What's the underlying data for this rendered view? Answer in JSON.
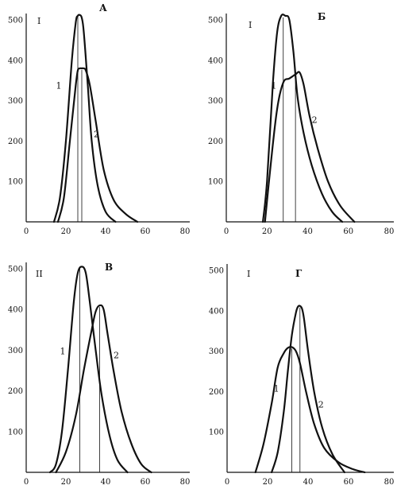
{
  "chart_data": [
    {
      "type": "line",
      "panel_letter": "А",
      "group_label": "I",
      "xlim": [
        0,
        80
      ],
      "ylim": [
        0,
        520
      ],
      "x_ticks": [
        "0",
        "20",
        "40",
        "60",
        "80"
      ],
      "y_ticks": [
        "100",
        "200",
        "300",
        "400",
        "500"
      ],
      "y_tick_values": [
        100,
        200,
        300,
        400,
        500
      ],
      "x_tick_values": [
        0,
        20,
        40,
        60,
        80
      ],
      "series": [
        {
          "name": "1",
          "x": [
            14,
            17,
            20,
            23,
            25,
            26,
            27,
            28,
            29,
            31,
            33,
            36,
            40,
            45
          ],
          "y": [
            0,
            60,
            200,
            400,
            495,
            510,
            512,
            505,
            470,
            340,
            200,
            90,
            25,
            0
          ]
        },
        {
          "name": "2",
          "x": [
            16,
            19,
            22,
            25,
            26,
            27,
            28,
            29,
            30,
            32,
            35,
            39,
            44,
            50,
            56
          ],
          "y": [
            0,
            60,
            200,
            340,
            375,
            380,
            380,
            380,
            375,
            340,
            250,
            130,
            55,
            20,
            0
          ]
        }
      ],
      "peak_lines": [
        26,
        28
      ]
    },
    {
      "type": "line",
      "panel_letter": "Б",
      "group_label": "I",
      "xlim": [
        0,
        80
      ],
      "ylim": [
        0,
        520
      ],
      "x_ticks": [
        "0",
        "20",
        "40",
        "60",
        "80"
      ],
      "y_ticks": [
        "100",
        "200",
        "300",
        "400",
        "500"
      ],
      "y_tick_values": [
        100,
        200,
        300,
        400,
        500
      ],
      "x_tick_values": [
        0,
        20,
        40,
        60,
        80
      ],
      "series": [
        {
          "name": "1",
          "x": [
            18,
            20,
            23,
            25,
            27,
            29,
            31,
            33,
            35,
            38,
            42,
            47,
            52,
            57
          ],
          "y": [
            0,
            100,
            350,
            470,
            510,
            510,
            500,
            420,
            310,
            220,
            140,
            70,
            25,
            0
          ]
        },
        {
          "name": "2",
          "x": [
            19,
            22,
            25,
            28,
            31,
            34,
            36,
            38,
            41,
            45,
            50,
            56,
            63
          ],
          "y": [
            0,
            150,
            280,
            345,
            355,
            365,
            370,
            340,
            260,
            180,
            100,
            40,
            0
          ]
        }
      ],
      "peak_lines": [
        28,
        34
      ]
    },
    {
      "type": "line",
      "panel_letter": "В",
      "group_label": "II",
      "xlim": [
        0,
        80
      ],
      "ylim": [
        0,
        520
      ],
      "x_ticks": [
        "0",
        "20",
        "40",
        "60",
        "80"
      ],
      "y_ticks": [
        "100",
        "200",
        "300",
        "400",
        "500"
      ],
      "y_tick_values": [
        100,
        200,
        300,
        400,
        500
      ],
      "x_tick_values": [
        0,
        20,
        40,
        60,
        80
      ],
      "series": [
        {
          "name": "1",
          "x": [
            12,
            15,
            18,
            21,
            24,
            26,
            28,
            30,
            32,
            35,
            38,
            42,
            46,
            51
          ],
          "y": [
            0,
            20,
            100,
            250,
            420,
            490,
            505,
            490,
            420,
            300,
            190,
            90,
            30,
            0
          ]
        },
        {
          "name": "2",
          "x": [
            15,
            20,
            25,
            29,
            33,
            35,
            37,
            39,
            41,
            44,
            48,
            53,
            58,
            63
          ],
          "y": [
            0,
            50,
            140,
            250,
            350,
            395,
            410,
            400,
            340,
            250,
            150,
            70,
            20,
            0
          ]
        }
      ],
      "peak_lines": [
        27,
        37
      ]
    },
    {
      "type": "line",
      "panel_letter": "Г",
      "group_label": "I",
      "xlim": [
        0,
        80
      ],
      "ylim": [
        0,
        520
      ],
      "x_ticks": [
        "0",
        "20",
        "40",
        "60",
        "80"
      ],
      "y_ticks": [
        "100",
        "200",
        "300",
        "400",
        "500"
      ],
      "y_tick_values": [
        100,
        200,
        300,
        400,
        500
      ],
      "x_tick_values": [
        0,
        20,
        40,
        60,
        80
      ],
      "series": [
        {
          "name": "1",
          "x": [
            14,
            18,
            22,
            25,
            28,
            30,
            32,
            34,
            36,
            39,
            43,
            48,
            55,
            62,
            68
          ],
          "y": [
            0,
            70,
            170,
            260,
            295,
            308,
            310,
            300,
            270,
            200,
            120,
            60,
            25,
            8,
            0
          ]
        },
        {
          "name": "2",
          "x": [
            22,
            25,
            28,
            30,
            32,
            34,
            35,
            36,
            37,
            38,
            40,
            43,
            47,
            52,
            58
          ],
          "y": [
            0,
            50,
            150,
            250,
            340,
            395,
            410,
            412,
            405,
            380,
            300,
            200,
            110,
            45,
            0
          ]
        }
      ],
      "peak_lines": [
        32,
        36
      ]
    }
  ]
}
